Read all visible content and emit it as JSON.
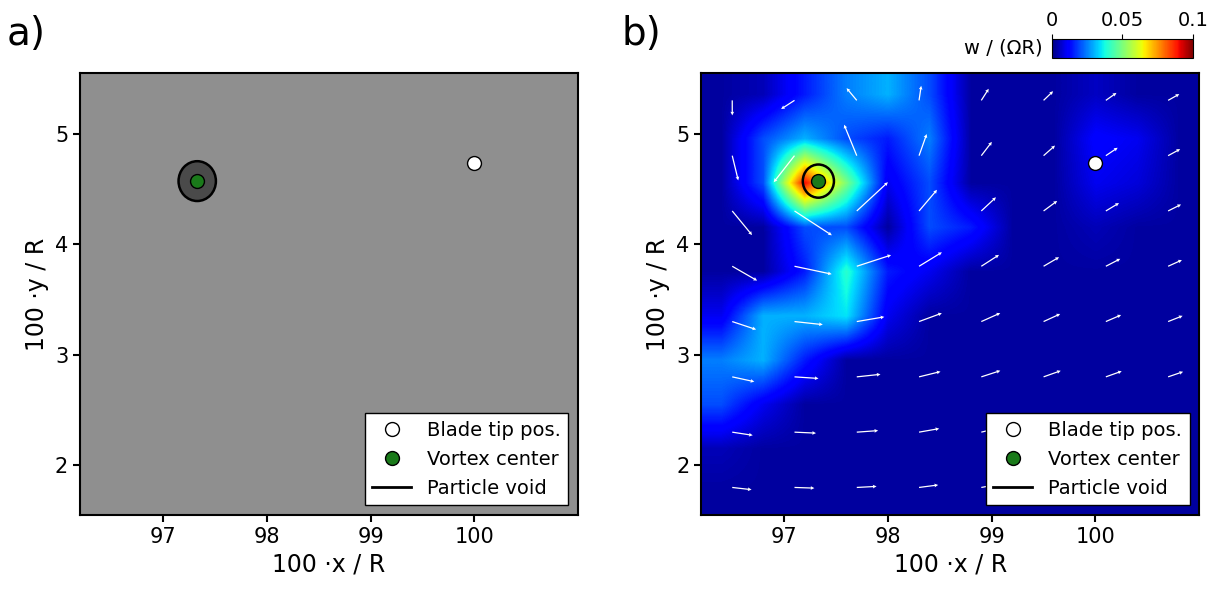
{
  "chart_data": [
    {
      "type": "image",
      "panel_label": "a)",
      "color": "#8f8f8f",
      "xlabel": "100 ·x / R",
      "ylabel": "100 ·y / R",
      "xlim": [
        96.2,
        101.0
      ],
      "ylim": [
        1.55,
        5.55
      ],
      "xticks": [
        97,
        98,
        99,
        100
      ],
      "yticks": [
        2,
        3,
        4,
        5
      ],
      "points": [
        {
          "name": "Blade tip pos.",
          "x": 100,
          "y": 4.73,
          "color": "#ffffff",
          "marker": "o"
        },
        {
          "name": "Vortex center",
          "x": 97.33,
          "y": 4.57,
          "color": "#1a7a1a",
          "marker": "o"
        }
      ],
      "void": {
        "name": "Particle void",
        "x": 97.33,
        "y": 4.57,
        "radius": 0.18,
        "color": "#000000"
      },
      "legend": "lower right"
    },
    {
      "type": "heatmap",
      "panel_label": "b)",
      "xlabel": "100 ·x / R",
      "ylabel": "100 ·y / R",
      "xlim": [
        96.2,
        101.0
      ],
      "ylim": [
        1.55,
        5.55
      ],
      "xticks": [
        97,
        98,
        99,
        100
      ],
      "yticks": [
        2,
        3,
        4,
        5
      ],
      "cells": {
        "xrange": [
          96.2,
          101.0
        ],
        "yrange": [
          1.55,
          5.55
        ],
        "values": [
          [
            0.003,
            0.003,
            0.003,
            0.003,
            0.003,
            0.003,
            0.003,
            0.003,
            0.003,
            0.003,
            0.003,
            0.003
          ],
          [
            0.005,
            0.003,
            0.003,
            0.003,
            0.003,
            0.003,
            0.003,
            0.003,
            0.003,
            0.003,
            0.003,
            0.003
          ],
          [
            0.02,
            0.01,
            0.003,
            0.003,
            0.003,
            0.003,
            0.003,
            0.003,
            0.003,
            0.003,
            0.003,
            0.003
          ],
          [
            0.025,
            0.03,
            0.015,
            0.003,
            0.003,
            0.003,
            0.003,
            0.003,
            0.003,
            0.003,
            0.003,
            0.003
          ],
          [
            0.01,
            0.03,
            0.03,
            0.035,
            0.01,
            0.003,
            0.003,
            0.003,
            0.003,
            0.003,
            0.003,
            0.003
          ],
          [
            0.003,
            0.003,
            0.015,
            0.04,
            0.015,
            0.01,
            0.003,
            0.003,
            0.003,
            0.003,
            0.003,
            0.003
          ],
          [
            0.003,
            0.003,
            0.02,
            0.02,
            0.003,
            0.02,
            0.015,
            0.003,
            0.003,
            0.005,
            0.003,
            0.003
          ],
          [
            0.003,
            0.02,
            0.09,
            0.05,
            0.01,
            0.02,
            0.003,
            0.003,
            0.003,
            0.01,
            0.008,
            0.003
          ],
          [
            0.003,
            0.02,
            0.03,
            0.02,
            0.015,
            0.025,
            0.003,
            0.003,
            0.003,
            0.012,
            0.01,
            0.003
          ],
          [
            0.003,
            0.005,
            0.015,
            0.025,
            0.03,
            0.02,
            0.003,
            0.003,
            0.003,
            0.006,
            0.003,
            0.003
          ]
        ]
      },
      "colorbar": {
        "label": "w / (ΩR)",
        "range": [
          0,
          0.1
        ],
        "ticks": [
          0,
          0.05,
          0.1
        ]
      },
      "vectors": {
        "color": "#ffffff",
        "x": [
          96.5,
          97.1,
          97.7,
          98.3,
          98.9,
          99.5,
          100.1,
          100.7
        ],
        "y": [
          1.8,
          2.3,
          2.8,
          3.3,
          3.8,
          4.3,
          4.8,
          5.3
        ],
        "u": [
          [
            0.466,
            0.479,
            0.477,
            0.461,
            0.437,
            0.412,
            0.39,
            0.373
          ],
          [
            0.494,
            0.518,
            0.515,
            0.486,
            0.449,
            0.415,
            0.388,
            0.369
          ],
          [
            0.532,
            0.578,
            0.571,
            0.517,
            0.458,
            0.413,
            0.382,
            0.361
          ],
          [
            0.576,
            0.681,
            0.663,
            0.549,
            0.456,
            0.4,
            0.368,
            0.349
          ],
          [
            0.6,
            0.896,
            0.827,
            0.551,
            0.426,
            0.373,
            0.347,
            0.332
          ],
          [
            0.477,
            0.9,
            0.75,
            0.433,
            0.353,
            0.328,
            0.317,
            0.312
          ],
          [
            0.145,
            -0.5,
            -0.305,
            0.184,
            0.254,
            0.276,
            0.285,
            0.29
          ],
          [
            0.001,
            -0.323,
            -0.245,
            0.052,
            0.178,
            0.23,
            0.256,
            0.269
          ]
        ],
        "v": [
          [
            -0.05,
            -0.015,
            0.024,
            0.056,
            0.077,
            0.088,
            0.09,
            0.089
          ],
          [
            -0.071,
            -0.022,
            0.035,
            0.08,
            0.103,
            0.11,
            0.108,
            0.102
          ],
          [
            -0.109,
            -0.036,
            0.057,
            0.119,
            0.14,
            0.138,
            0.128,
            0.116
          ],
          [
            -0.18,
            -0.069,
            0.106,
            0.19,
            0.192,
            0.172,
            0.149,
            0.13
          ],
          [
            -0.324,
            -0.178,
            0.253,
            0.316,
            0.257,
            0.205,
            0.168,
            0.141
          ],
          [
            -0.545,
            -0.55,
            0.65,
            0.478,
            0.309,
            0.227,
            0.179,
            0.147
          ],
          [
            -0.559,
            -0.6,
            0.7,
            0.488,
            0.312,
            0.228,
            0.179,
            0.148
          ],
          [
            -0.34,
            -0.196,
            0.276,
            0.329,
            0.262,
            0.207,
            0.169,
            0.142
          ]
        ]
      },
      "points": [
        {
          "name": "Blade tip pos.",
          "x": 100,
          "y": 4.73,
          "color": "#ffffff",
          "marker": "o"
        },
        {
          "name": "Vortex center",
          "x": 97.33,
          "y": 4.57,
          "color": "#1a7a1a",
          "marker": "o"
        }
      ],
      "void": {
        "name": "Particle void",
        "x": 97.33,
        "y": 4.57,
        "radius": 0.15,
        "color": "#000000"
      },
      "legend": "lower right"
    }
  ]
}
